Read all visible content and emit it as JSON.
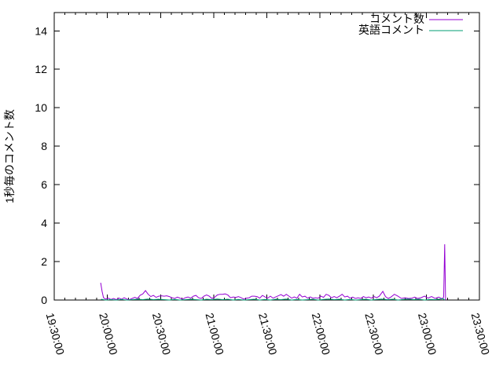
{
  "page": {
    "background": "#ffffff",
    "text_color": "#000000"
  },
  "chart_data": {
    "type": "line",
    "title": "",
    "xlabel": "",
    "ylabel": "1秒毎のコメント数",
    "grid": false,
    "legend_position": "top-right-inside",
    "x_axis": {
      "kind": "time",
      "span_minutes": 240,
      "major_tick_every_minutes": 30,
      "minor_tick_every_minutes": 6,
      "tick_labels": [
        "19:30:00",
        "20:00:00",
        "20:30:00",
        "21:00:00",
        "21:30:00",
        "22:00:00",
        "22:30:00",
        "23:00:00",
        "23:30:00"
      ]
    },
    "y_axis": {
      "ticks": [
        "0",
        "2",
        "4",
        "6",
        "8",
        "10",
        "12",
        "14"
      ],
      "tick_values": [
        0,
        2,
        4,
        6,
        8,
        10,
        12,
        14
      ],
      "lim": [
        0,
        14.95
      ]
    },
    "series": [
      {
        "name": "コメント数",
        "color": "#9400d3",
        "points": [
          [
            26.2,
            0.9
          ],
          [
            27,
            0.45
          ],
          [
            27.8,
            0.12
          ],
          [
            29,
            0.05
          ],
          [
            30.5,
            0.1
          ],
          [
            32,
            0.03
          ],
          [
            33.5,
            0.08
          ],
          [
            35,
            0.02
          ],
          [
            36.5,
            0.1
          ],
          [
            38,
            0.04
          ],
          [
            39.5,
            0.12
          ],
          [
            41,
            0.05
          ],
          [
            42.5,
            0.02
          ],
          [
            44,
            0.08
          ],
          [
            45.5,
            0.14
          ],
          [
            47,
            0.08
          ],
          [
            48.5,
            0.25
          ],
          [
            50,
            0.32
          ],
          [
            51.5,
            0.49
          ],
          [
            53,
            0.3
          ],
          [
            54.5,
            0.18
          ],
          [
            56,
            0.24
          ],
          [
            57.5,
            0.14
          ],
          [
            59,
            0.2
          ],
          [
            60.5,
            0.22
          ],
          [
            62,
            0.2
          ],
          [
            63.5,
            0.22
          ],
          [
            65,
            0.18
          ],
          [
            66.5,
            0.12
          ],
          [
            68,
            0.08
          ],
          [
            69.5,
            0.15
          ],
          [
            71,
            0.1
          ],
          [
            72.5,
            0.05
          ],
          [
            74,
            0.12
          ],
          [
            75.5,
            0.16
          ],
          [
            77,
            0.1
          ],
          [
            78.5,
            0.2
          ],
          [
            80,
            0.24
          ],
          [
            81.5,
            0.12
          ],
          [
            83,
            0.08
          ],
          [
            84.5,
            0.2
          ],
          [
            86,
            0.26
          ],
          [
            87.5,
            0.2
          ],
          [
            89,
            0.08
          ],
          [
            90.5,
            0.14
          ],
          [
            92,
            0.26
          ],
          [
            93.5,
            0.3
          ],
          [
            95,
            0.3
          ],
          [
            96.5,
            0.32
          ],
          [
            98,
            0.26
          ],
          [
            99.5,
            0.12
          ],
          [
            101,
            0.16
          ],
          [
            102.5,
            0.14
          ],
          [
            104,
            0.18
          ],
          [
            105.5,
            0.12
          ],
          [
            107,
            0.05
          ],
          [
            108.5,
            0.1
          ],
          [
            110,
            0.12
          ],
          [
            111.5,
            0.2
          ],
          [
            113,
            0.2
          ],
          [
            114.5,
            0.18
          ],
          [
            116,
            0.1
          ],
          [
            117.5,
            0.24
          ],
          [
            119,
            0.16
          ],
          [
            120.5,
            0.1
          ],
          [
            122,
            0.2
          ],
          [
            123.5,
            0.1
          ],
          [
            125,
            0.16
          ],
          [
            126.5,
            0.22
          ],
          [
            128,
            0.28
          ],
          [
            129.5,
            0.2
          ],
          [
            131,
            0.3
          ],
          [
            132.5,
            0.2
          ],
          [
            134,
            0.1
          ],
          [
            135.5,
            0.16
          ],
          [
            137,
            0.1
          ],
          [
            138.5,
            0.3
          ],
          [
            140,
            0.16
          ],
          [
            141.5,
            0.2
          ],
          [
            143,
            0.1
          ],
          [
            144.5,
            0.16
          ],
          [
            146,
            0.1
          ],
          [
            147.5,
            0.12
          ],
          [
            149,
            0.1
          ],
          [
            150.5,
            0.2
          ],
          [
            152,
            0.14
          ],
          [
            153.5,
            0.3
          ],
          [
            155,
            0.24
          ],
          [
            156.5,
            0.12
          ],
          [
            158,
            0.18
          ],
          [
            159.5,
            0.12
          ],
          [
            161,
            0.2
          ],
          [
            162.5,
            0.3
          ],
          [
            164,
            0.16
          ],
          [
            165.5,
            0.2
          ],
          [
            167,
            0.1
          ],
          [
            168.5,
            0.15
          ],
          [
            170,
            0.08
          ],
          [
            171.5,
            0.12
          ],
          [
            173,
            0.08
          ],
          [
            174.5,
            0.18
          ],
          [
            176,
            0.12
          ],
          [
            177.5,
            0.16
          ],
          [
            179,
            0.1
          ],
          [
            180.5,
            0.18
          ],
          [
            182,
            0.12
          ],
          [
            183.5,
            0.2
          ],
          [
            185.5,
            0.45
          ],
          [
            187,
            0.18
          ],
          [
            188.5,
            0.08
          ],
          [
            190,
            0.15
          ],
          [
            192,
            0.3
          ],
          [
            194,
            0.2
          ],
          [
            196,
            0.08
          ],
          [
            198,
            0.12
          ],
          [
            200,
            0.08
          ],
          [
            202,
            0.1
          ],
          [
            203.5,
            0.15
          ],
          [
            205,
            0.08
          ],
          [
            207,
            0.12
          ],
          [
            209,
            0.2
          ],
          [
            211,
            0.1
          ],
          [
            213,
            0.18
          ],
          [
            215,
            0.08
          ],
          [
            217,
            0.15
          ],
          [
            219,
            0.06
          ],
          [
            219.8,
            0.15
          ],
          [
            220.4,
            2.9
          ],
          [
            220.9,
            0.05
          ],
          [
            221.3,
            0
          ]
        ]
      },
      {
        "name": "英語コメント",
        "color": "#009e73",
        "points": [
          [
            26.5,
            0.04
          ],
          [
            29,
            0
          ],
          [
            32,
            0.02
          ],
          [
            35,
            0
          ],
          [
            38,
            0.03
          ],
          [
            41,
            0
          ],
          [
            44,
            0.02
          ],
          [
            47,
            0.04
          ],
          [
            50,
            0.02
          ],
          [
            53,
            0.05
          ],
          [
            56,
            0.02
          ],
          [
            59,
            0.04
          ],
          [
            62,
            0.02
          ],
          [
            65,
            0
          ],
          [
            68,
            0.03
          ],
          [
            71,
            0
          ],
          [
            74,
            0.02
          ],
          [
            77,
            0.04
          ],
          [
            80,
            0.02
          ],
          [
            83,
            0
          ],
          [
            86,
            0.04
          ],
          [
            89,
            0.02
          ],
          [
            92,
            0.05
          ],
          [
            95,
            0.02
          ],
          [
            98,
            0.04
          ],
          [
            101,
            0
          ],
          [
            104,
            0.03
          ],
          [
            107,
            0
          ],
          [
            110,
            0.02
          ],
          [
            113,
            0.04
          ],
          [
            116,
            0
          ],
          [
            119,
            0.03
          ],
          [
            122,
            0
          ],
          [
            125,
            0.04
          ],
          [
            128,
            0.02
          ],
          [
            131,
            0.05
          ],
          [
            134,
            0
          ],
          [
            137,
            0.03
          ],
          [
            140,
            0
          ],
          [
            143,
            0.02
          ],
          [
            146,
            0.04
          ],
          [
            149,
            0
          ],
          [
            152,
            0.03
          ],
          [
            155,
            0.05
          ],
          [
            158,
            0.02
          ],
          [
            161,
            0.04
          ],
          [
            164,
            0
          ],
          [
            167,
            0.03
          ],
          [
            170,
            0
          ],
          [
            173,
            0.02
          ],
          [
            176,
            0.04
          ],
          [
            179,
            0
          ],
          [
            182,
            0.03
          ],
          [
            185,
            0.05
          ],
          [
            188,
            0.02
          ],
          [
            191,
            0.04
          ],
          [
            194,
            0
          ],
          [
            197,
            0.03
          ],
          [
            200,
            0.05
          ],
          [
            203,
            0.02
          ],
          [
            206,
            0.04
          ],
          [
            209,
            0
          ],
          [
            212,
            0.03
          ],
          [
            215,
            0.02
          ],
          [
            218,
            0.05
          ],
          [
            219.5,
            0.07
          ],
          [
            220.5,
            0
          ]
        ]
      }
    ]
  }
}
